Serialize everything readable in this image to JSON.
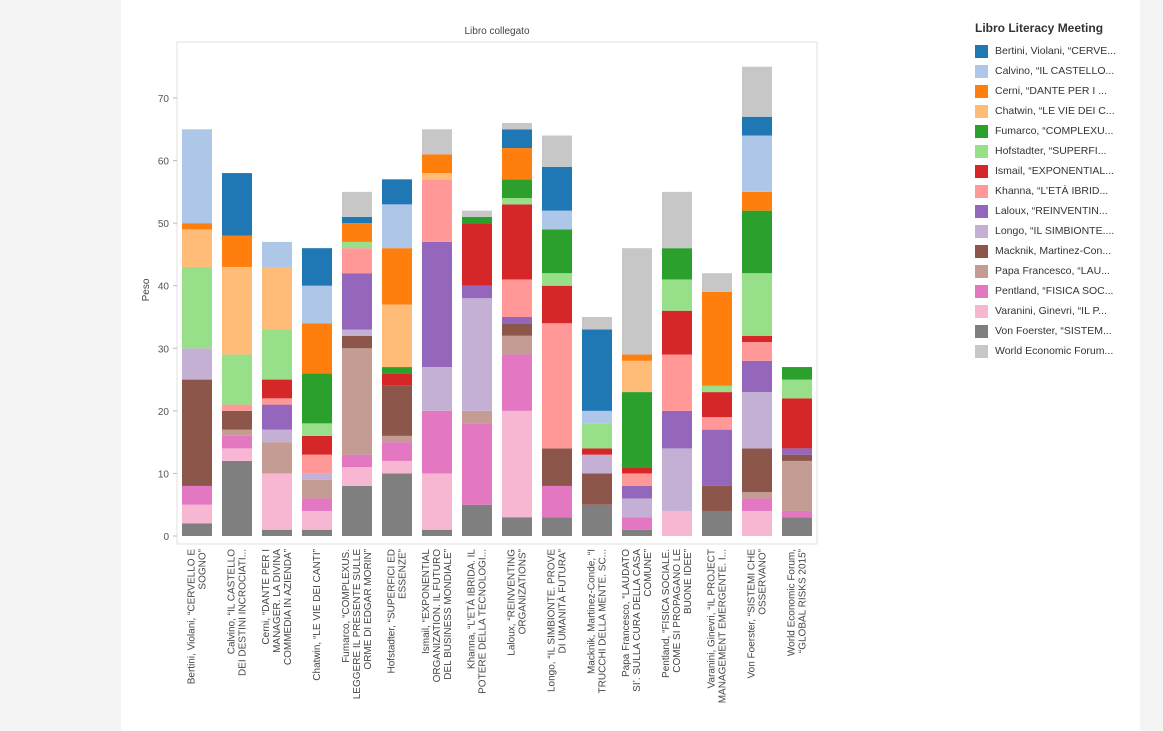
{
  "chart_data": {
    "type": "bar",
    "stacked": true,
    "title": "Libro collegato",
    "ylabel": "Peso",
    "xlabel": "",
    "ylim": [
      0,
      78
    ],
    "yticks": [
      0,
      10,
      20,
      30,
      40,
      50,
      60,
      70
    ],
    "legend_title": "Libro Literacy Meeting",
    "legend_position": "right",
    "categories": [
      [
        "Bertini, Violani, “CERVELLO E",
        "SOGNO”"
      ],
      [
        "Calvino, “IL CASTELLO",
        "DEI DESTINI INCROCIATI..."
      ],
      [
        "Cerni, “DANTE PER I",
        "MANAGER. LA DIVINA",
        "COMMEDIA IN AZIENDA”"
      ],
      [
        "Chatwin, “LE VIE DEI CANTI”"
      ],
      [
        "Fumarco, “COMPLEXUS.",
        "LEGGERE IL PRESENTE SULLE",
        "ORME DI EDGAR MORIN”"
      ],
      [
        "Hofstadter, “SUPERFICI ED",
        "ESSENZE”"
      ],
      [
        "Ismail, “EXPONENTIAL",
        "ORGANIZATION. IL FUTURO",
        "DEL BUSINESS MONDIALE”"
      ],
      [
        "Khanna, “L’ETÀ IBRIDA. IL",
        "POTERE DELLA TECNOLOGI..."
      ],
      [
        "Laloux, “REINVENTING",
        "ORGANIZATIONS”"
      ],
      [
        "Longo, “IL SIMBIONTE. PROVE",
        "DI UMANITÀ FUTURA”"
      ],
      [
        "Macknik, Martinez-Conde, “I",
        "TRUCCHI DELLA MENTE. SC..."
      ],
      [
        "Papa Francesco, “LAUDATO",
        "SI’. SULLA CURA DELLA CASA",
        "COMUNE”"
      ],
      [
        "Pentland, “FISICA SOCIALE.",
        "COME SI PROPAGANO LE",
        "BUONE IDEE”"
      ],
      [
        "Varanini, Ginevri, “IL PROJECT",
        "MANAGEMENT EMERGENTE. I..."
      ],
      [
        "Von Foerster, “SISTEMI CHE",
        "OSSERVANO”"
      ],
      [
        "World Economic Forum,",
        "“GLOBAL RISKS 2015”"
      ]
    ],
    "series": [
      {
        "name": "Von Foerster, “SISTEM...",
        "color": "#7f7f7f",
        "values": [
          2,
          12,
          1,
          1,
          8,
          10,
          1,
          5,
          3,
          3,
          5,
          1,
          0,
          4,
          0,
          3
        ]
      },
      {
        "name": "Varanini, Ginevri, “IL P...",
        "color": "#f7b6d2",
        "values": [
          3,
          2,
          9,
          3,
          3,
          2,
          9,
          0,
          17,
          0,
          0,
          0,
          4,
          0,
          4,
          0
        ]
      },
      {
        "name": "Pentland, “FISICA SOC...",
        "color": "#e377c2",
        "values": [
          3,
          2,
          0,
          2,
          2,
          3,
          10,
          13,
          9,
          5,
          0,
          2,
          0,
          0,
          2,
          1
        ]
      },
      {
        "name": "Papa Francesco, “LAU...",
        "color": "#c49c94",
        "values": [
          0,
          1,
          5,
          3,
          17,
          1,
          0,
          2,
          3,
          0,
          0,
          0,
          0,
          0,
          1,
          8
        ]
      },
      {
        "name": "Macknik, Martinez-Con...",
        "color": "#8c564b",
        "values": [
          17,
          3,
          0,
          0,
          2,
          8,
          0,
          0,
          2,
          6,
          5,
          0,
          0,
          4,
          7,
          1
        ]
      },
      {
        "name": "Longo, “IL SIMBIONTE....",
        "color": "#c5b0d5",
        "values": [
          5,
          0,
          2,
          1,
          1,
          0,
          7,
          18,
          0,
          0,
          3,
          3,
          10,
          0,
          9,
          0
        ]
      },
      {
        "name": "Laloux, “REINVENTIN...",
        "color": "#9467bd",
        "values": [
          0,
          0,
          4,
          0,
          9,
          0,
          20,
          2,
          1,
          0,
          0,
          2,
          6,
          9,
          5,
          1
        ]
      },
      {
        "name": "Khanna, “L’ETÀ IBRID...",
        "color": "#ff9896",
        "values": [
          0,
          1,
          1,
          3,
          4,
          0,
          10,
          0,
          6,
          20,
          0,
          2,
          9,
          2,
          3,
          0
        ]
      },
      {
        "name": "Ismail, “EXPONENTIAL...",
        "color": "#d62728",
        "values": [
          0,
          0,
          3,
          3,
          0,
          2,
          0,
          10,
          12,
          6,
          1,
          1,
          7,
          4,
          1,
          8
        ]
      },
      {
        "name": "Hofstadter, “SUPERFI...",
        "color": "#98df8a",
        "values": [
          13,
          8,
          8,
          2,
          1,
          0,
          0,
          0,
          1,
          2,
          4,
          0,
          5,
          1,
          10,
          3
        ]
      },
      {
        "name": "Fumarco, “COMPLEXU...",
        "color": "#2ca02c",
        "values": [
          0,
          0,
          0,
          8,
          0,
          1,
          0,
          1,
          3,
          7,
          0,
          12,
          5,
          0,
          10,
          2
        ]
      },
      {
        "name": "Chatwin, “LE VIE DEI C...",
        "color": "#ffbb78",
        "values": [
          6,
          14,
          10,
          0,
          0,
          10,
          1,
          0,
          0,
          0,
          0,
          5,
          0,
          0,
          0,
          0
        ]
      },
      {
        "name": "Cerni, “DANTE PER I ...",
        "color": "#ff7f0e",
        "values": [
          1,
          5,
          0,
          8,
          3,
          9,
          3,
          0,
          5,
          0,
          0,
          1,
          0,
          15,
          3,
          0
        ]
      },
      {
        "name": "Calvino, “IL CASTELLO...",
        "color": "#aec7e8",
        "values": [
          15,
          0,
          4,
          6,
          0,
          7,
          0,
          0,
          0,
          3,
          2,
          0,
          0,
          0,
          9,
          0
        ]
      },
      {
        "name": "Bertini, Violani, “CERVE...",
        "color": "#1f77b4",
        "values": [
          0,
          10,
          0,
          6,
          1,
          4,
          0,
          0,
          3,
          7,
          13,
          0,
          0,
          0,
          3,
          0
        ]
      },
      {
        "name": "World Economic Forum...",
        "color": "#c7c7c7",
        "values": [
          0,
          0,
          0,
          0,
          4,
          0,
          4,
          1,
          1,
          5,
          2,
          17,
          9,
          3,
          8,
          0
        ]
      }
    ]
  }
}
